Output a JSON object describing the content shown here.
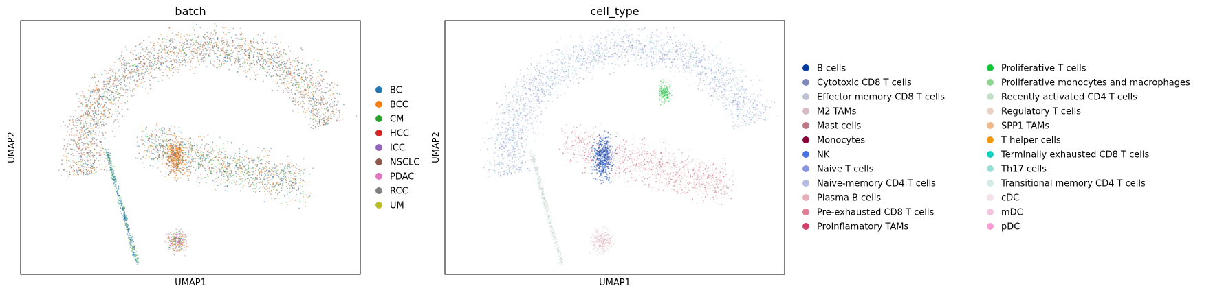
{
  "chart_data": [
    {
      "type": "scatter",
      "title": "batch",
      "xlabel": "UMAP1",
      "ylabel": "UMAP2",
      "xticks": "none",
      "yticks": "none",
      "legend_position": "right",
      "legend": [
        {
          "label": "BC",
          "color": "#1f77b4"
        },
        {
          "label": "BCC",
          "color": "#ff7f0e"
        },
        {
          "label": "CM",
          "color": "#2ca02c"
        },
        {
          "label": "HCC",
          "color": "#d62728"
        },
        {
          "label": "ICC",
          "color": "#9467bd"
        },
        {
          "label": "NSCLC",
          "color": "#8c564b"
        },
        {
          "label": "PDAC",
          "color": "#e377c2"
        },
        {
          "label": "RCC",
          "color": "#7f7f7f"
        },
        {
          "label": "UM",
          "color": "#bcbd22"
        }
      ]
    },
    {
      "type": "scatter",
      "title": "cell_type",
      "xlabel": "UMAP1",
      "ylabel": "UMAP2",
      "xticks": "none",
      "yticks": "none",
      "legend_position": "right",
      "legend": [
        {
          "label": "B cells",
          "color": "#023fa5"
        },
        {
          "label": "Cytotoxic CD8 T cells",
          "color": "#7d87b9"
        },
        {
          "label": "Effector memory CD8 T cells",
          "color": "#bec1d4"
        },
        {
          "label": "M2 TAMs",
          "color": "#d6bcc0"
        },
        {
          "label": "Mast cells",
          "color": "#bb7784"
        },
        {
          "label": "Monocytes",
          "color": "#8e063b"
        },
        {
          "label": "NK",
          "color": "#4a6fe3"
        },
        {
          "label": "Naive T cells",
          "color": "#8595e1"
        },
        {
          "label": "Naive-memory CD4 T cells",
          "color": "#b5bbe3"
        },
        {
          "label": "Plasma B cells",
          "color": "#e6afb9"
        },
        {
          "label": "Pre-exhausted CD8 T cells",
          "color": "#e07b91"
        },
        {
          "label": "Proinflamatory TAMs",
          "color": "#d33f6a"
        },
        {
          "label": "Proliferative T cells",
          "color": "#11c638"
        },
        {
          "label": "Proliferative monocytes and macrophages",
          "color": "#8dd593"
        },
        {
          "label": "Recently activated CD4 T cells",
          "color": "#c6dec7"
        },
        {
          "label": "Regulatory T cells",
          "color": "#ead3c6"
        },
        {
          "label": "SPP1 TAMs",
          "color": "#f0b98d"
        },
        {
          "label": "T helper cells",
          "color": "#ef9708"
        },
        {
          "label": "Terminally exhausted CD8 T cells",
          "color": "#0fcfc0"
        },
        {
          "label": "Th17 cells",
          "color": "#9cded6"
        },
        {
          "label": "Transitional memory CD4 T cells",
          "color": "#d5eae7"
        },
        {
          "label": "cDC",
          "color": "#f3e1eb"
        },
        {
          "label": "mDC",
          "color": "#f6c4e1"
        },
        {
          "label": "pDC",
          "color": "#f79cd4"
        }
      ]
    }
  ]
}
